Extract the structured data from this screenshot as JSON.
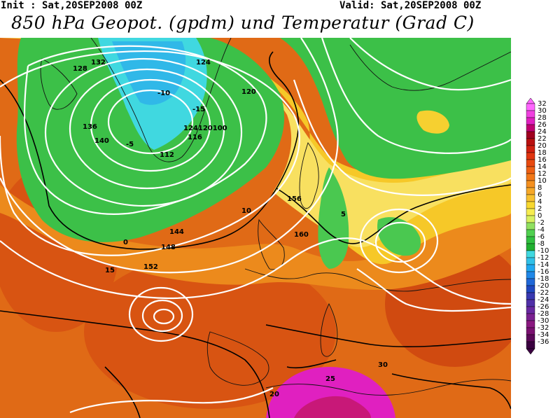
{
  "header": {
    "init": "Init : Sat,20SEP2008 00Z",
    "valid": "Valid: Sat,20SEP2008 00Z",
    "title": "850 hPa Geopot. (gpdm) und Temperatur (Grad C)"
  },
  "colors": {
    "hot_pink": "#e020c0",
    "red_orange": "#d84a10",
    "orange": "#e87a18",
    "light_orange": "#f0a020",
    "yellow": "#f6d020",
    "pale_yellow": "#f8ec70",
    "green": "#30c040",
    "light_green": "#6ad25a",
    "cyan": "#40d8e0",
    "contour": "#ffffff"
  },
  "legend": {
    "unit": "Grad C",
    "labels": [
      "32",
      "30",
      "28",
      "26",
      "24",
      "22",
      "20",
      "18",
      "16",
      "14",
      "12",
      "10",
      "8",
      "6",
      "4",
      "2",
      "0",
      "-2",
      "-4",
      "-6",
      "-8",
      "-10",
      "-12",
      "-14",
      "-16",
      "-18",
      "-20",
      "-22",
      "-24",
      "-26",
      "-28",
      "-30",
      "-32",
      "-34",
      "-36"
    ],
    "colors": [
      "#ff66ff",
      "#f040e0",
      "#e020c0",
      "#c00070",
      "#a00020",
      "#b81010",
      "#d02010",
      "#e03510",
      "#e84a10",
      "#ee6014",
      "#f27818",
      "#f49020",
      "#f6a828",
      "#f8c030",
      "#f8d830",
      "#f6ec50",
      "#d8f060",
      "#90e060",
      "#50d050",
      "#30c040",
      "#20b030",
      "#40d8e0",
      "#30c0e8",
      "#20a8f0",
      "#2088e8",
      "#2068d8",
      "#2048c0",
      "#3838b0",
      "#5030a8",
      "#6828a0",
      "#7a2090",
      "#8a1880",
      "#7a1070",
      "#5a0858",
      "#3a0040"
    ]
  },
  "geopotential_labels": [
    {
      "text": "128"
    },
    {
      "text": "132"
    },
    {
      "text": "124"
    },
    {
      "text": "120"
    },
    {
      "text": "116"
    },
    {
      "text": "112"
    },
    {
      "text": "136"
    },
    {
      "text": "140"
    },
    {
      "text": "144"
    },
    {
      "text": "148"
    },
    {
      "text": "152"
    },
    {
      "text": "156"
    },
    {
      "text": "160"
    },
    {
      "text": "124120100"
    }
  ],
  "temperature_labels": [
    "-15",
    "-10",
    "-5",
    "0",
    "5",
    "10",
    "15",
    "20",
    "25",
    "30"
  ]
}
